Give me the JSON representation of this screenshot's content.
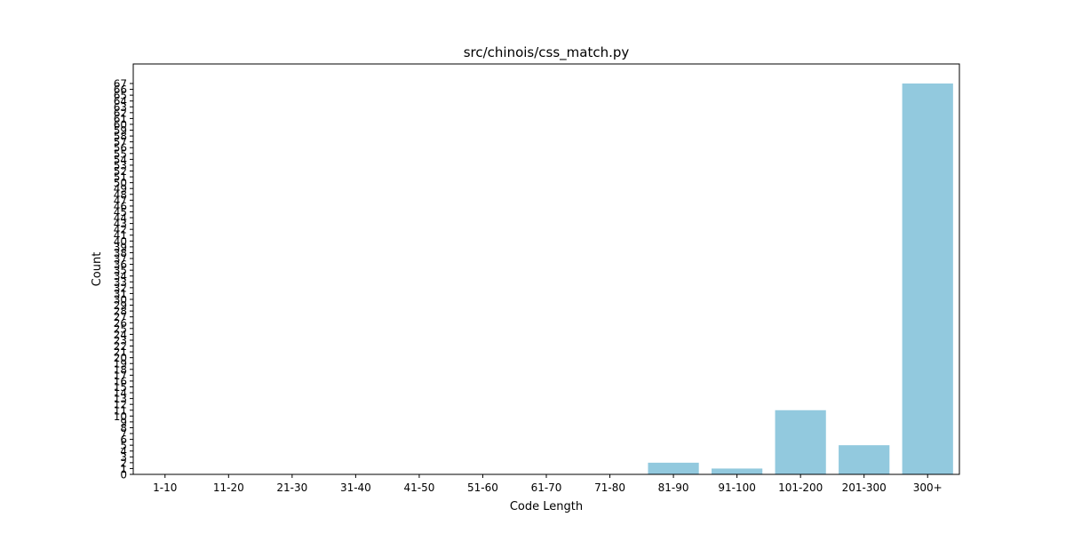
{
  "chart_data": {
    "type": "bar",
    "title": "src/chinois/css_match.py",
    "xlabel": "Code Length",
    "ylabel": "Count",
    "categories": [
      "1-10",
      "11-20",
      "21-30",
      "31-40",
      "41-50",
      "51-60",
      "61-70",
      "71-80",
      "81-90",
      "91-100",
      "101-200",
      "201-300",
      "300+"
    ],
    "values": [
      0,
      0,
      0,
      0,
      0,
      0,
      0,
      0,
      2,
      1,
      11,
      5,
      67
    ],
    "ylim": [
      0,
      70.35
    ],
    "yticks": [
      0,
      1,
      2,
      3,
      4,
      5,
      6,
      7,
      8,
      9,
      10,
      11,
      12,
      13,
      14,
      15,
      16,
      17,
      18,
      19,
      20,
      21,
      22,
      23,
      24,
      25,
      26,
      27,
      28,
      29,
      30,
      31,
      32,
      33,
      34,
      35,
      36,
      37,
      38,
      39,
      40,
      41,
      42,
      43,
      44,
      45,
      46,
      47,
      48,
      49,
      50,
      51,
      52,
      53,
      54,
      55,
      56,
      57,
      58,
      59,
      60,
      61,
      62,
      63,
      64,
      65,
      66,
      67
    ],
    "bar_color": "#92c9de",
    "grid": false,
    "legend": "none"
  }
}
